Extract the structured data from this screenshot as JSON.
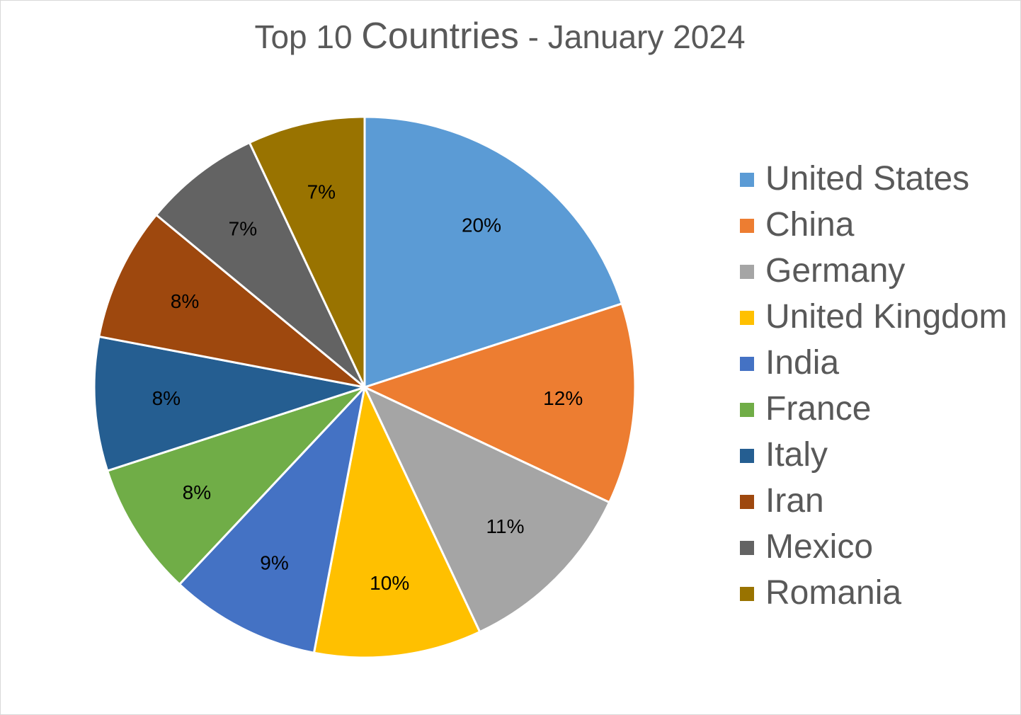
{
  "chart_data": {
    "type": "pie",
    "title": "Top 10 Countries - January 2024",
    "title_parts": {
      "prefix": "Top 10 ",
      "emphasis": "Countries",
      "suffix": " - January 2024"
    },
    "categories": [
      "United States",
      "China",
      "Germany",
      "United Kingdom",
      "India",
      "France",
      "Italy",
      "Iran",
      "Mexico",
      "Romania"
    ],
    "values": [
      20,
      12,
      11,
      10,
      9,
      8,
      8,
      8,
      7,
      7
    ],
    "labels": [
      "20%",
      "12%",
      "11%",
      "10%",
      "9%",
      "8%",
      "8%",
      "8%",
      "7%",
      "7%"
    ],
    "colors": [
      "#5b9bd5",
      "#ed7d31",
      "#a5a5a5",
      "#ffc000",
      "#4472c4",
      "#70ad47",
      "#255e91",
      "#9e480e",
      "#636363",
      "#997300"
    ],
    "unit": "%",
    "legend_position": "right"
  }
}
